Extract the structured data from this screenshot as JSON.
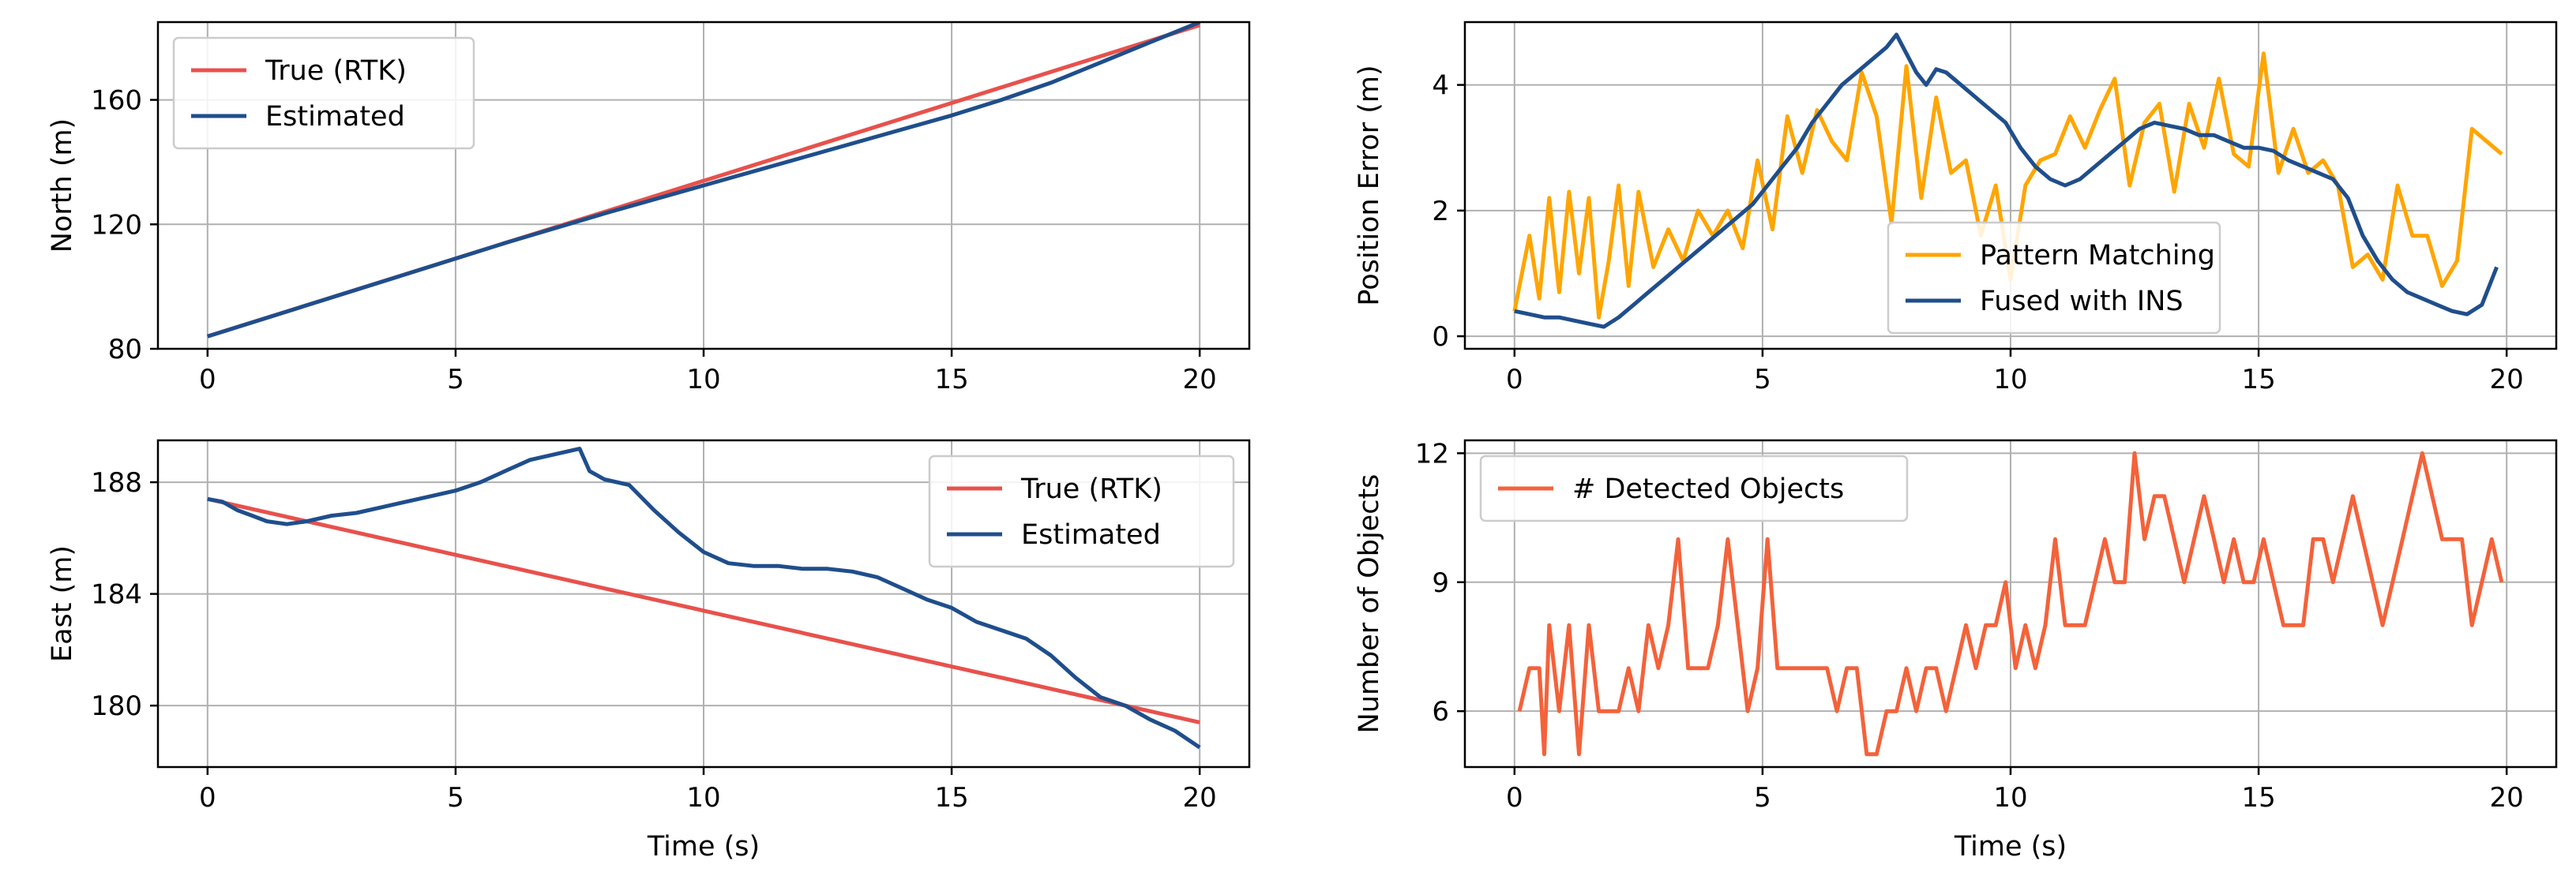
{
  "chart_data": [
    {
      "id": "north",
      "type": "line",
      "title": "",
      "xlabel": "",
      "ylabel": "North (m)",
      "xlim": [
        -1,
        21
      ],
      "ylim": [
        80,
        185
      ],
      "xticks": [
        0,
        5,
        10,
        15,
        20
      ],
      "yticks": [
        80,
        120,
        160
      ],
      "grid": true,
      "legend_position": "upper-left",
      "series": [
        {
          "name": "True (RTK)",
          "color": "#e8514c",
          "x": [
            0,
            2,
            4,
            6,
            8,
            10,
            12,
            14,
            16,
            18,
            20
          ],
          "y": [
            84,
            94,
            104,
            114,
            124,
            134,
            144,
            154,
            164,
            174,
            184
          ]
        },
        {
          "name": "Estimated",
          "color": "#1f4e8c",
          "x": [
            0,
            2,
            4,
            6,
            8,
            10,
            12,
            14,
            15,
            16,
            17,
            18,
            19,
            20
          ],
          "y": [
            84,
            94,
            104,
            114,
            123.5,
            132.5,
            141.5,
            150.5,
            155,
            160,
            165.5,
            172,
            178.5,
            185
          ]
        }
      ]
    },
    {
      "id": "error",
      "type": "line",
      "title": "",
      "xlabel": "",
      "ylabel": "Position Error (m)",
      "xlim": [
        -1,
        21
      ],
      "ylim": [
        -0.2,
        5
      ],
      "xticks": [
        0,
        5,
        10,
        15,
        20
      ],
      "yticks": [
        0,
        2,
        4
      ],
      "grid": true,
      "legend_position": "lower-center",
      "series": [
        {
          "name": "Pattern Matching",
          "color": "#ffa500",
          "x": [
            0,
            0.3,
            0.5,
            0.7,
            0.9,
            1.1,
            1.3,
            1.5,
            1.7,
            1.9,
            2.1,
            2.3,
            2.5,
            2.8,
            3.1,
            3.4,
            3.7,
            4.0,
            4.3,
            4.6,
            4.9,
            5.2,
            5.5,
            5.8,
            6.1,
            6.4,
            6.7,
            7.0,
            7.3,
            7.6,
            7.9,
            8.2,
            8.5,
            8.8,
            9.1,
            9.4,
            9.7,
            10.0,
            10.3,
            10.6,
            10.9,
            11.2,
            11.5,
            11.8,
            12.1,
            12.4,
            12.7,
            13.0,
            13.3,
            13.6,
            13.9,
            14.2,
            14.5,
            14.8,
            15.1,
            15.4,
            15.7,
            16.0,
            16.3,
            16.6,
            16.9,
            17.2,
            17.5,
            17.8,
            18.1,
            18.4,
            18.7,
            19.0,
            19.3,
            19.6,
            19.9
          ],
          "y": [
            0.4,
            1.6,
            0.6,
            2.2,
            0.7,
            2.3,
            1.0,
            2.2,
            0.3,
            1.2,
            2.4,
            0.8,
            2.3,
            1.1,
            1.7,
            1.2,
            2.0,
            1.6,
            2.0,
            1.4,
            2.8,
            1.7,
            3.5,
            2.6,
            3.6,
            3.1,
            2.8,
            4.2,
            3.5,
            1.8,
            4.3,
            2.2,
            3.8,
            2.6,
            2.8,
            1.6,
            2.4,
            0.9,
            2.4,
            2.8,
            2.9,
            3.5,
            3.0,
            3.6,
            4.1,
            2.4,
            3.4,
            3.7,
            2.3,
            3.7,
            3.0,
            4.1,
            2.9,
            2.7,
            4.5,
            2.6,
            3.3,
            2.6,
            2.8,
            2.4,
            1.1,
            1.3,
            0.9,
            2.4,
            1.6,
            1.6,
            0.8,
            1.2,
            3.3,
            3.1,
            2.9
          ]
        },
        {
          "name": "Fused with INS",
          "color": "#1f4e8c",
          "x": [
            0,
            0.3,
            0.6,
            0.9,
            1.2,
            1.5,
            1.8,
            2.1,
            2.4,
            2.7,
            3.0,
            3.3,
            3.6,
            3.9,
            4.2,
            4.5,
            4.8,
            5.1,
            5.4,
            5.7,
            6.0,
            6.3,
            6.6,
            6.9,
            7.2,
            7.5,
            7.7,
            7.9,
            8.1,
            8.3,
            8.5,
            8.7,
            9.0,
            9.3,
            9.6,
            9.9,
            10.2,
            10.5,
            10.8,
            11.1,
            11.4,
            11.7,
            12.0,
            12.3,
            12.6,
            12.9,
            13.2,
            13.5,
            13.8,
            14.1,
            14.4,
            14.7,
            15.0,
            15.3,
            15.6,
            15.9,
            16.2,
            16.5,
            16.8,
            17.1,
            17.4,
            17.7,
            18.0,
            18.3,
            18.6,
            18.9,
            19.2,
            19.5,
            19.8
          ],
          "y": [
            0.4,
            0.35,
            0.3,
            0.3,
            0.25,
            0.2,
            0.15,
            0.3,
            0.5,
            0.7,
            0.9,
            1.1,
            1.3,
            1.5,
            1.7,
            1.9,
            2.1,
            2.4,
            2.7,
            3.0,
            3.4,
            3.7,
            4.0,
            4.2,
            4.4,
            4.6,
            4.8,
            4.5,
            4.2,
            4.0,
            4.25,
            4.2,
            4.0,
            3.8,
            3.6,
            3.4,
            3.0,
            2.7,
            2.5,
            2.4,
            2.5,
            2.7,
            2.9,
            3.1,
            3.3,
            3.4,
            3.35,
            3.3,
            3.2,
            3.2,
            3.1,
            3.0,
            3.0,
            2.95,
            2.8,
            2.7,
            2.6,
            2.5,
            2.2,
            1.6,
            1.2,
            0.9,
            0.7,
            0.6,
            0.5,
            0.4,
            0.35,
            0.5,
            1.1
          ]
        }
      ]
    },
    {
      "id": "east",
      "type": "line",
      "title": "",
      "xlabel": "Time (s)",
      "ylabel": "East (m)",
      "xlim": [
        -1,
        21
      ],
      "ylim": [
        177.8,
        189.5
      ],
      "xticks": [
        0,
        5,
        10,
        15,
        20
      ],
      "yticks": [
        180,
        184,
        188
      ],
      "grid": true,
      "legend_position": "upper-right",
      "series": [
        {
          "name": "True (RTK)",
          "color": "#e8514c",
          "x": [
            0,
            20
          ],
          "y": [
            187.4,
            179.4
          ]
        },
        {
          "name": "Estimated",
          "color": "#1f4e8c",
          "x": [
            0,
            0.3,
            0.6,
            0.9,
            1.2,
            1.6,
            2.0,
            2.5,
            3.0,
            3.5,
            4.0,
            4.5,
            5.0,
            5.5,
            6.0,
            6.5,
            7.0,
            7.5,
            7.7,
            8.0,
            8.5,
            9.0,
            9.5,
            10.0,
            10.5,
            11.0,
            11.5,
            12.0,
            12.5,
            13.0,
            13.5,
            14.0,
            14.5,
            15.0,
            15.5,
            16.0,
            16.5,
            17.0,
            17.5,
            18.0,
            18.5,
            19.0,
            19.5,
            20.0
          ],
          "y": [
            187.4,
            187.3,
            187.0,
            186.8,
            186.6,
            186.5,
            186.6,
            186.8,
            186.9,
            187.1,
            187.3,
            187.5,
            187.7,
            188.0,
            188.4,
            188.8,
            189.0,
            189.2,
            188.4,
            188.1,
            187.9,
            187.0,
            186.2,
            185.5,
            185.1,
            185.0,
            185.0,
            184.9,
            184.9,
            184.8,
            184.6,
            184.2,
            183.8,
            183.5,
            183.0,
            182.7,
            182.4,
            181.8,
            181.0,
            180.3,
            180.0,
            179.5,
            179.1,
            178.5
          ]
        }
      ]
    },
    {
      "id": "objects",
      "type": "line",
      "title": "",
      "xlabel": "Time (s)",
      "ylabel": "Number of Objects",
      "xlim": [
        -1,
        21
      ],
      "ylim": [
        4.7,
        12.3
      ],
      "xticks": [
        0,
        5,
        10,
        15,
        20
      ],
      "yticks": [
        6,
        9,
        12
      ],
      "grid": true,
      "legend_position": "upper-left",
      "series": [
        {
          "name": "# Detected Objects",
          "color": "#f4623a",
          "x": [
            0.1,
            0.3,
            0.5,
            0.6,
            0.7,
            0.9,
            1.1,
            1.3,
            1.5,
            1.7,
            1.9,
            2.1,
            2.3,
            2.5,
            2.7,
            2.9,
            3.1,
            3.3,
            3.5,
            3.7,
            3.9,
            4.1,
            4.3,
            4.5,
            4.7,
            4.9,
            5.1,
            5.3,
            5.5,
            5.7,
            5.9,
            6.1,
            6.3,
            6.5,
            6.7,
            6.9,
            7.1,
            7.3,
            7.5,
            7.7,
            7.9,
            8.1,
            8.3,
            8.5,
            8.7,
            8.9,
            9.1,
            9.3,
            9.5,
            9.7,
            9.9,
            10.1,
            10.3,
            10.5,
            10.7,
            10.9,
            11.1,
            11.3,
            11.5,
            11.7,
            11.9,
            12.1,
            12.3,
            12.5,
            12.7,
            12.9,
            13.1,
            13.3,
            13.5,
            13.7,
            13.9,
            14.1,
            14.3,
            14.5,
            14.7,
            14.9,
            15.1,
            15.3,
            15.5,
            15.7,
            15.9,
            16.1,
            16.3,
            16.5,
            16.7,
            16.9,
            17.1,
            17.3,
            17.5,
            17.7,
            17.9,
            18.1,
            18.3,
            18.5,
            18.7,
            18.9,
            19.1,
            19.3,
            19.5,
            19.7,
            19.9
          ],
          "y": [
            6,
            7,
            7,
            5,
            8,
            6,
            8,
            5,
            8,
            6,
            6,
            6,
            7,
            6,
            8,
            7,
            8,
            10,
            7,
            7,
            7,
            8,
            10,
            8,
            6,
            7,
            10,
            7,
            7,
            7,
            7,
            7,
            7,
            6,
            7,
            7,
            5,
            5,
            6,
            6,
            7,
            6,
            7,
            7,
            6,
            7,
            8,
            7,
            8,
            8,
            9,
            7,
            8,
            7,
            8,
            10,
            8,
            8,
            8,
            9,
            10,
            9,
            9,
            12,
            10,
            11,
            11,
            10,
            9,
            10,
            11,
            10,
            9,
            10,
            9,
            9,
            10,
            9,
            8,
            8,
            8,
            10,
            10,
            9,
            10,
            11,
            10,
            9,
            8,
            9,
            10,
            11,
            12,
            11,
            10,
            10,
            10,
            8,
            9,
            10,
            9
          ]
        }
      ]
    }
  ]
}
